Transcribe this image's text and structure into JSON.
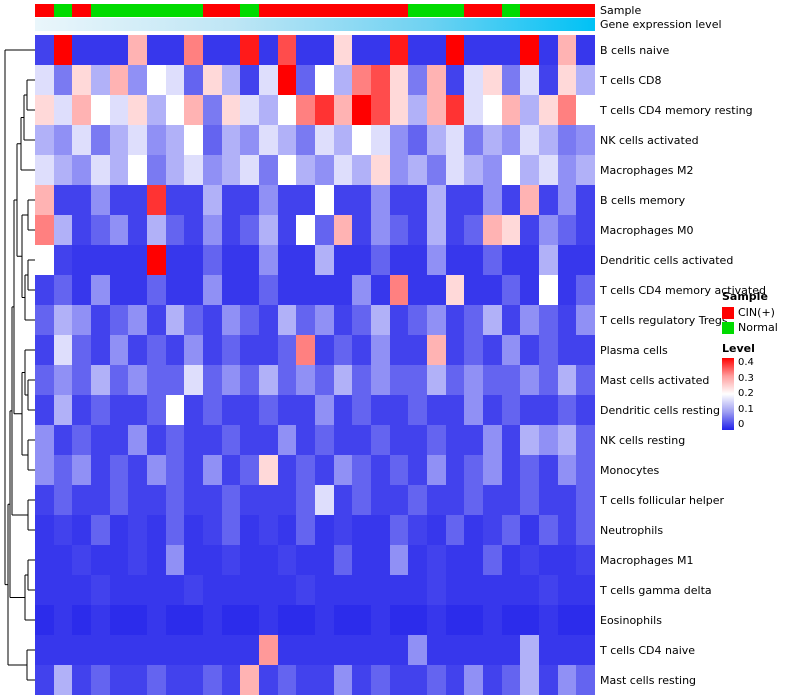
{
  "annotations": {
    "sample_label": "Sample",
    "gene_expression_label": "Gene expression level",
    "gene_expression_gradient_low": "#eaf6fb",
    "gene_expression_gradient_high": "#00c2f5"
  },
  "legend": {
    "sample": {
      "title": "Sample",
      "colors": {
        "CIN(+)": "#fe0000",
        "Normal": "#00db00"
      },
      "items": [
        {
          "label": "CIN(+)",
          "color": "#fe0000"
        },
        {
          "label": "Normal",
          "color": "#00db00"
        }
      ]
    },
    "level": {
      "title": "Level",
      "ticks": [
        "0.4",
        "0.3",
        "0.2",
        "0.1",
        "0"
      ],
      "color_high": "#ff0000",
      "color_mid": "#ffffff",
      "color_low": "#2121ea"
    }
  },
  "chart_data": {
    "type": "heatmap",
    "title": "",
    "value_range": [
      0,
      0.4
    ],
    "columns": 30,
    "rows": [
      "B cells naive",
      "T cells CD8",
      "T cells CD4 memory resting",
      "NK cells activated",
      "Macrophages M2",
      "B cells memory",
      "Macrophages M0",
      "Dendritic cells activated",
      "T cells CD4 memory activated",
      "T cells regulatory  Tregs",
      "Plasma cells",
      "Mast cells activated",
      "Dendritic cells resting",
      "NK cells resting",
      "Monocytes",
      "T cells follicular helper",
      "Neutrophils",
      "Macrophages M1",
      "T cells gamma delta",
      "Eosinophils",
      "T cells CD4 naive",
      "Mast cells resting"
    ],
    "sample_annotation": [
      "CIN(+)",
      "Normal",
      "CIN(+)",
      "Normal",
      "Normal",
      "Normal",
      "Normal",
      "Normal",
      "Normal",
      "CIN(+)",
      "CIN(+)",
      "Normal",
      "CIN(+)",
      "CIN(+)",
      "CIN(+)",
      "CIN(+)",
      "CIN(+)",
      "CIN(+)",
      "CIN(+)",
      "CIN(+)",
      "Normal",
      "Normal",
      "Normal",
      "CIN(+)",
      "CIN(+)",
      "Normal",
      "CIN(+)",
      "CIN(+)",
      "CIN(+)",
      "CIN(+)"
    ],
    "values": [
      [
        0.03,
        0.4,
        0.02,
        0.02,
        0.02,
        0.26,
        0.02,
        0.02,
        0.3,
        0.02,
        0.02,
        0.38,
        0.02,
        0.34,
        0.02,
        0.02,
        0.23,
        0.02,
        0.02,
        0.38,
        0.02,
        0.02,
        0.4,
        0.02,
        0.02,
        0.02,
        0.4,
        0.02,
        0.26,
        0.02
      ],
      [
        0.17,
        0.08,
        0.23,
        0.13,
        0.26,
        0.1,
        0.2,
        0.17,
        0.06,
        0.23,
        0.13,
        0.03,
        0.17,
        0.4,
        0.06,
        0.2,
        0.13,
        0.3,
        0.34,
        0.23,
        0.08,
        0.26,
        0.03,
        0.17,
        0.23,
        0.08,
        0.17,
        0.03,
        0.23,
        0.13
      ],
      [
        0.23,
        0.17,
        0.26,
        0.2,
        0.17,
        0.23,
        0.13,
        0.2,
        0.26,
        0.08,
        0.23,
        0.17,
        0.13,
        0.2,
        0.3,
        0.36,
        0.26,
        0.4,
        0.34,
        0.23,
        0.13,
        0.26,
        0.36,
        0.17,
        0.2,
        0.26,
        0.13,
        0.23,
        0.3,
        0.2
      ],
      [
        0.13,
        0.1,
        0.17,
        0.08,
        0.13,
        0.17,
        0.1,
        0.13,
        0.2,
        0.06,
        0.13,
        0.1,
        0.17,
        0.13,
        0.08,
        0.17,
        0.13,
        0.2,
        0.17,
        0.1,
        0.06,
        0.13,
        0.17,
        0.08,
        0.13,
        0.1,
        0.17,
        0.13,
        0.08,
        0.1
      ],
      [
        0.17,
        0.13,
        0.1,
        0.17,
        0.13,
        0.2,
        0.08,
        0.13,
        0.17,
        0.1,
        0.13,
        0.17,
        0.08,
        0.2,
        0.13,
        0.1,
        0.17,
        0.13,
        0.23,
        0.1,
        0.13,
        0.08,
        0.17,
        0.13,
        0.1,
        0.2,
        0.13,
        0.17,
        0.1,
        0.13
      ],
      [
        0.26,
        0.03,
        0.03,
        0.1,
        0.03,
        0.03,
        0.36,
        0.03,
        0.03,
        0.13,
        0.03,
        0.03,
        0.1,
        0.03,
        0.03,
        0.2,
        0.03,
        0.03,
        0.1,
        0.03,
        0.03,
        0.13,
        0.03,
        0.03,
        0.1,
        0.03,
        0.26,
        0.03,
        0.1,
        0.03
      ],
      [
        0.3,
        0.13,
        0.03,
        0.06,
        0.1,
        0.03,
        0.13,
        0.06,
        0.03,
        0.1,
        0.03,
        0.06,
        0.13,
        0.03,
        0.2,
        0.06,
        0.26,
        0.03,
        0.1,
        0.06,
        0.03,
        0.13,
        0.03,
        0.06,
        0.26,
        0.23,
        0.03,
        0.1,
        0.06,
        0.03
      ],
      [
        0.2,
        0.03,
        0.02,
        0.02,
        0.02,
        0.02,
        0.4,
        0.02,
        0.02,
        0.06,
        0.02,
        0.02,
        0.1,
        0.02,
        0.02,
        0.13,
        0.02,
        0.02,
        0.06,
        0.02,
        0.02,
        0.1,
        0.02,
        0.02,
        0.06,
        0.02,
        0.02,
        0.13,
        0.02,
        0.02
      ],
      [
        0.03,
        0.06,
        0.02,
        0.1,
        0.02,
        0.02,
        0.06,
        0.02,
        0.02,
        0.1,
        0.02,
        0.02,
        0.06,
        0.02,
        0.02,
        0.02,
        0.02,
        0.1,
        0.02,
        0.3,
        0.02,
        0.02,
        0.23,
        0.02,
        0.02,
        0.06,
        0.02,
        0.2,
        0.02,
        0.06
      ],
      [
        0.06,
        0.13,
        0.1,
        0.03,
        0.06,
        0.1,
        0.03,
        0.13,
        0.06,
        0.03,
        0.1,
        0.06,
        0.03,
        0.13,
        0.06,
        0.1,
        0.03,
        0.06,
        0.13,
        0.03,
        0.06,
        0.1,
        0.03,
        0.06,
        0.13,
        0.03,
        0.1,
        0.06,
        0.03,
        0.1
      ],
      [
        0.03,
        0.17,
        0.06,
        0.03,
        0.1,
        0.03,
        0.06,
        0.03,
        0.1,
        0.03,
        0.06,
        0.03,
        0.03,
        0.06,
        0.3,
        0.03,
        0.06,
        0.03,
        0.1,
        0.03,
        0.03,
        0.26,
        0.03,
        0.06,
        0.03,
        0.1,
        0.03,
        0.06,
        0.03,
        0.03
      ],
      [
        0.06,
        0.1,
        0.06,
        0.13,
        0.06,
        0.1,
        0.06,
        0.06,
        0.17,
        0.06,
        0.1,
        0.06,
        0.13,
        0.06,
        0.1,
        0.06,
        0.13,
        0.06,
        0.1,
        0.06,
        0.06,
        0.13,
        0.06,
        0.1,
        0.06,
        0.06,
        0.1,
        0.06,
        0.13,
        0.06
      ],
      [
        0.03,
        0.13,
        0.03,
        0.06,
        0.03,
        0.03,
        0.06,
        0.2,
        0.03,
        0.06,
        0.03,
        0.03,
        0.06,
        0.03,
        0.03,
        0.1,
        0.03,
        0.06,
        0.03,
        0.03,
        0.06,
        0.03,
        0.03,
        0.1,
        0.03,
        0.06,
        0.03,
        0.03,
        0.06,
        0.03
      ],
      [
        0.1,
        0.03,
        0.06,
        0.03,
        0.03,
        0.1,
        0.03,
        0.06,
        0.03,
        0.03,
        0.06,
        0.03,
        0.03,
        0.1,
        0.03,
        0.06,
        0.03,
        0.03,
        0.06,
        0.03,
        0.03,
        0.06,
        0.03,
        0.03,
        0.1,
        0.03,
        0.13,
        0.1,
        0.13,
        0.06
      ],
      [
        0.1,
        0.06,
        0.1,
        0.03,
        0.06,
        0.03,
        0.1,
        0.06,
        0.03,
        0.1,
        0.03,
        0.06,
        0.23,
        0.03,
        0.06,
        0.03,
        0.1,
        0.06,
        0.03,
        0.06,
        0.03,
        0.1,
        0.03,
        0.06,
        0.1,
        0.03,
        0.06,
        0.03,
        0.1,
        0.06
      ],
      [
        0.03,
        0.06,
        0.03,
        0.03,
        0.06,
        0.03,
        0.03,
        0.06,
        0.03,
        0.03,
        0.06,
        0.03,
        0.03,
        0.03,
        0.06,
        0.17,
        0.03,
        0.06,
        0.03,
        0.03,
        0.06,
        0.03,
        0.03,
        0.06,
        0.03,
        0.03,
        0.06,
        0.03,
        0.03,
        0.06
      ],
      [
        0.02,
        0.03,
        0.02,
        0.06,
        0.02,
        0.03,
        0.02,
        0.06,
        0.02,
        0.03,
        0.06,
        0.02,
        0.03,
        0.02,
        0.06,
        0.02,
        0.03,
        0.02,
        0.02,
        0.06,
        0.03,
        0.02,
        0.06,
        0.02,
        0.03,
        0.06,
        0.02,
        0.06,
        0.03,
        0.06
      ],
      [
        0.02,
        0.02,
        0.03,
        0.02,
        0.02,
        0.03,
        0.02,
        0.1,
        0.02,
        0.02,
        0.03,
        0.02,
        0.02,
        0.03,
        0.02,
        0.02,
        0.06,
        0.02,
        0.02,
        0.1,
        0.02,
        0.03,
        0.02,
        0.02,
        0.06,
        0.02,
        0.03,
        0.02,
        0.02,
        0.03
      ],
      [
        0.02,
        0.02,
        0.02,
        0.03,
        0.02,
        0.02,
        0.02,
        0.02,
        0.03,
        0.02,
        0.02,
        0.02,
        0.02,
        0.02,
        0.03,
        0.02,
        0.02,
        0.02,
        0.02,
        0.02,
        0.02,
        0.03,
        0.02,
        0.02,
        0.02,
        0.02,
        0.02,
        0.03,
        0.02,
        0.02
      ],
      [
        0.01,
        0.02,
        0.01,
        0.02,
        0.01,
        0.01,
        0.02,
        0.01,
        0.01,
        0.02,
        0.01,
        0.01,
        0.02,
        0.01,
        0.01,
        0.02,
        0.01,
        0.01,
        0.02,
        0.01,
        0.01,
        0.02,
        0.01,
        0.01,
        0.02,
        0.01,
        0.01,
        0.02,
        0.01,
        0.01
      ],
      [
        0.02,
        0.02,
        0.02,
        0.02,
        0.02,
        0.02,
        0.02,
        0.02,
        0.02,
        0.02,
        0.02,
        0.02,
        0.28,
        0.02,
        0.02,
        0.02,
        0.02,
        0.02,
        0.02,
        0.02,
        0.1,
        0.02,
        0.02,
        0.02,
        0.02,
        0.02,
        0.13,
        0.02,
        0.02,
        0.02
      ],
      [
        0.03,
        0.13,
        0.03,
        0.06,
        0.03,
        0.03,
        0.06,
        0.03,
        0.03,
        0.06,
        0.03,
        0.26,
        0.03,
        0.06,
        0.03,
        0.03,
        0.1,
        0.03,
        0.06,
        0.03,
        0.03,
        0.06,
        0.03,
        0.1,
        0.03,
        0.06,
        0.13,
        0.03,
        0.1,
        0.06
      ]
    ]
  }
}
